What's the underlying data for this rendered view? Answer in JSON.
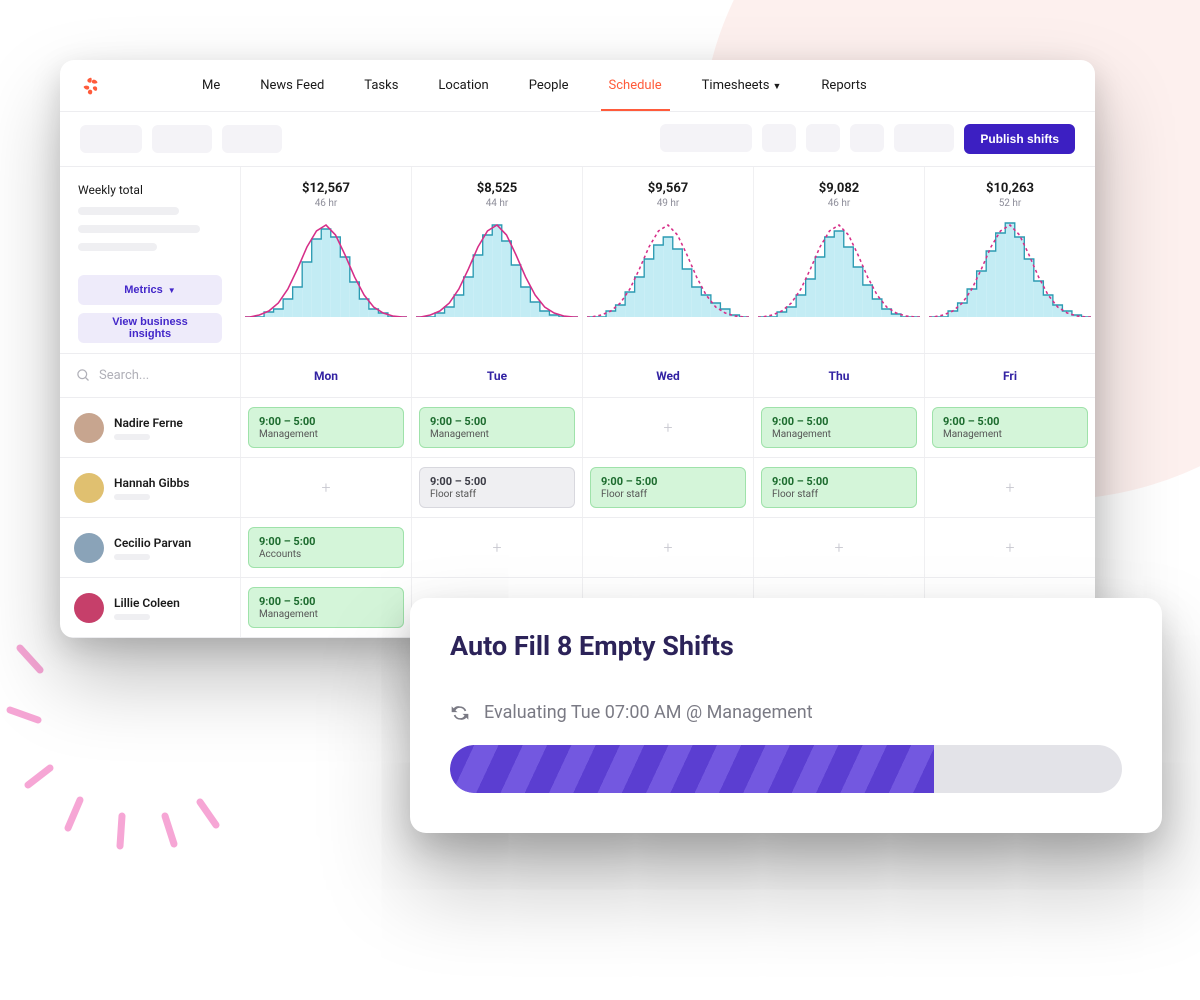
{
  "brand_color": "#ff5b3b",
  "nav": {
    "items": [
      "Me",
      "News Feed",
      "Tasks",
      "Location",
      "People",
      "Schedule",
      "Timesheets",
      "Reports"
    ],
    "active_index": 5,
    "dropdown_indices": [
      6
    ]
  },
  "toolbar": {
    "left_ghost_widths": [
      62,
      60,
      60
    ],
    "right_ghost_widths": [
      92,
      34,
      34,
      34,
      60
    ],
    "publish_label": "Publish shifts"
  },
  "weekly": {
    "label": "Weekly total",
    "metrics_btn": "Metrics",
    "insights_btn": "View business insights"
  },
  "days": [
    {
      "name": "Mon",
      "dollar": "$12,567",
      "hours": "46 hr",
      "dashed": false
    },
    {
      "name": "Tue",
      "dollar": "$8,525",
      "hours": "44 hr",
      "dashed": false
    },
    {
      "name": "Wed",
      "dollar": "$9,567",
      "hours": "49 hr",
      "dashed": true
    },
    {
      "name": "Thu",
      "dollar": "$9,082",
      "hours": "46 hr",
      "dashed": true
    },
    {
      "name": "Fri",
      "dollar": "$10,263",
      "hours": "52 hr",
      "dashed": true
    }
  ],
  "chart_style": {
    "bar_fill": "#c3ecf4",
    "step_stroke": "#2b9ab2",
    "curve_stroke": "#d62e88",
    "curve_stroke_width": 1.6,
    "bars_0": [
      0,
      0,
      5,
      8,
      18,
      30,
      55,
      78,
      88,
      80,
      60,
      35,
      18,
      8,
      4,
      0,
      0
    ],
    "bars_1": [
      0,
      0,
      4,
      10,
      22,
      40,
      62,
      82,
      92,
      76,
      52,
      30,
      15,
      6,
      2,
      0,
      0
    ],
    "bars_2": [
      0,
      0,
      6,
      12,
      25,
      40,
      58,
      72,
      80,
      68,
      48,
      30,
      22,
      14,
      8,
      2,
      0
    ],
    "bars_3": [
      0,
      0,
      5,
      10,
      22,
      38,
      60,
      80,
      86,
      70,
      50,
      32,
      18,
      8,
      3,
      0,
      0
    ],
    "bars_4": [
      0,
      0,
      6,
      14,
      28,
      46,
      66,
      84,
      94,
      80,
      58,
      36,
      22,
      12,
      6,
      2,
      0
    ],
    "curve_peak": [
      0,
      2,
      6,
      14,
      28,
      48,
      70,
      86,
      92,
      82,
      62,
      40,
      22,
      10,
      4,
      1,
      0
    ]
  },
  "shift_colors": {
    "green_bg": "#d4f5d9",
    "green_border": "#9fe2aa",
    "gray_bg": "#efeff2",
    "gray_border": "#d8d8de"
  },
  "search_placeholder": "Search...",
  "employees": [
    {
      "name": "Nadire Ferne",
      "avatar_bg": "#c7a58f",
      "shifts": [
        {
          "time": "9:00 – 5:00",
          "role": "Management",
          "style": "green"
        },
        {
          "time": "9:00 – 5:00",
          "role": "Management",
          "style": "green"
        },
        null,
        {
          "time": "9:00 – 5:00",
          "role": "Management",
          "style": "green"
        },
        {
          "time": "9:00 – 5:00",
          "role": "Management",
          "style": "green"
        }
      ]
    },
    {
      "name": "Hannah Gibbs",
      "avatar_bg": "#e0c070",
      "shifts": [
        null,
        {
          "time": "9:00 – 5:00",
          "role": "Floor staff",
          "style": "gray"
        },
        {
          "time": "9:00 – 5:00",
          "role": "Floor staff",
          "style": "green"
        },
        {
          "time": "9:00 – 5:00",
          "role": "Floor staff",
          "style": "green"
        },
        null
      ]
    },
    {
      "name": "Cecilio Parvan",
      "avatar_bg": "#8aa3b8",
      "shifts": [
        {
          "time": "9:00 – 5:00",
          "role": "Accounts",
          "style": "green"
        },
        null,
        null,
        null,
        null
      ]
    },
    {
      "name": "Lillie Coleen",
      "avatar_bg": "#c63f6a",
      "shifts": [
        {
          "time": "9:00 – 5:00",
          "role": "Management",
          "style": "green"
        },
        null,
        null,
        null,
        null
      ]
    }
  ],
  "modal": {
    "title": "Auto Fill 8 Empty Shifts",
    "status": "Evaluating Tue 07:00 AM @ Management",
    "progress_pct": 72,
    "bar_color_a": "#5b3ed1",
    "bar_color_b": "#7358e0",
    "bar_track": "#e3e3e8"
  },
  "ray_color": "#f6a6d5"
}
